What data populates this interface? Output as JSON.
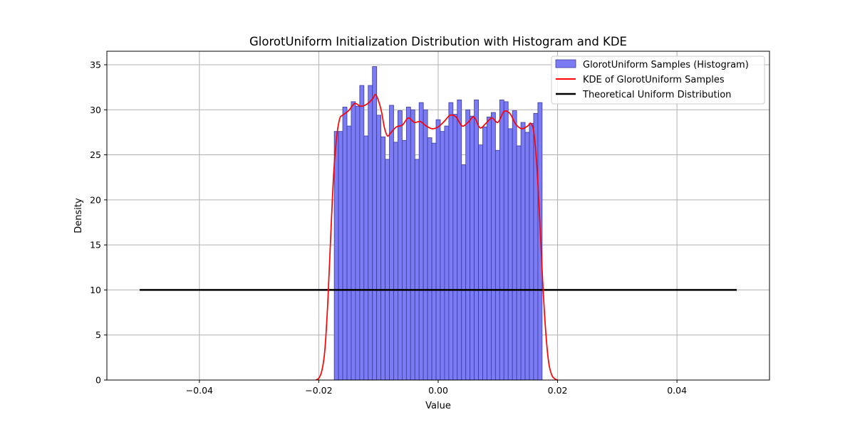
{
  "chart_data": {
    "type": "bar",
    "title": "GlorotUniform Initialization Distribution with Histogram and KDE",
    "xlabel": "Value",
    "ylabel": "Density",
    "xlim": [
      -0.0555,
      0.0555
    ],
    "ylim": [
      0,
      36.5
    ],
    "grid": true,
    "legend_position": "top-right",
    "x_ticks": [
      -0.04,
      -0.02,
      0.0,
      0.02,
      0.04
    ],
    "x_tick_labels": [
      "−0.04",
      "−0.02",
      "0.00",
      "0.02",
      "0.04"
    ],
    "y_ticks": [
      0,
      5,
      10,
      15,
      20,
      25,
      30,
      35
    ],
    "y_tick_labels": [
      "0",
      "5",
      "10",
      "15",
      "20",
      "25",
      "30",
      "35"
    ],
    "colors": {
      "histogram_fill": "#7b7bf5",
      "histogram_edge": "#3a3a9a",
      "kde": "#ff0000",
      "theoretical": "#000000",
      "grid": "#b0b0b0"
    },
    "series": [
      {
        "name": "GlorotUniform Samples (Histogram)",
        "kind": "histogram",
        "bin_start": -0.01741,
        "bin_end": 0.01741,
        "values": [
          27.6,
          27.6,
          30.3,
          28.2,
          30.9,
          30.4,
          32.7,
          27.1,
          32.7,
          34.8,
          29.4,
          27.0,
          24.5,
          30.5,
          26.4,
          29.9,
          26.6,
          30.3,
          30.0,
          24.5,
          30.8,
          30.0,
          26.9,
          26.3,
          28.9,
          27.6,
          28.2,
          30.8,
          29.5,
          31.1,
          23.9,
          30.0,
          29.3,
          31.1,
          26.1,
          28.1,
          29.2,
          29.7,
          25.5,
          31.1,
          30.9,
          27.9,
          29.9,
          26.0,
          28.6,
          27.5,
          28.5,
          29.6,
          30.8
        ]
      },
      {
        "name": "KDE of GlorotUniform Samples",
        "kind": "line",
        "x": [
          -0.0205,
          -0.02,
          -0.0195,
          -0.019,
          -0.0185,
          -0.018,
          -0.0175,
          -0.017,
          -0.0165,
          -0.016,
          -0.015,
          -0.014,
          -0.013,
          -0.012,
          -0.011,
          -0.0105,
          -0.01,
          -0.0095,
          -0.009,
          -0.0085,
          -0.008,
          -0.007,
          -0.006,
          -0.005,
          -0.004,
          -0.003,
          -0.002,
          -0.001,
          0.0,
          0.001,
          0.002,
          0.003,
          0.004,
          0.005,
          0.006,
          0.007,
          0.008,
          0.009,
          0.01,
          0.011,
          0.012,
          0.013,
          0.014,
          0.015,
          0.0155,
          0.016,
          0.0165,
          0.017,
          0.0175,
          0.018,
          0.0185,
          0.019,
          0.0195,
          0.02
        ],
        "y": [
          0.0,
          0.2,
          1.0,
          3.2,
          8.5,
          16.0,
          23.0,
          27.0,
          29.0,
          29.4,
          29.9,
          30.7,
          30.4,
          30.6,
          31.2,
          31.7,
          31.0,
          29.8,
          28.0,
          27.1,
          27.4,
          28.1,
          28.3,
          29.1,
          28.6,
          28.7,
          28.2,
          27.9,
          28.1,
          28.7,
          29.4,
          29.2,
          28.2,
          28.6,
          29.2,
          28.0,
          28.5,
          29.1,
          28.6,
          29.8,
          29.6,
          28.4,
          27.9,
          28.2,
          28.5,
          27.6,
          24.0,
          18.0,
          11.0,
          5.5,
          2.0,
          0.6,
          0.15,
          0.0
        ]
      },
      {
        "name": "Theoretical Uniform Distribution",
        "kind": "line",
        "x": [
          -0.05,
          0.05
        ],
        "y": [
          10,
          10
        ]
      }
    ]
  }
}
